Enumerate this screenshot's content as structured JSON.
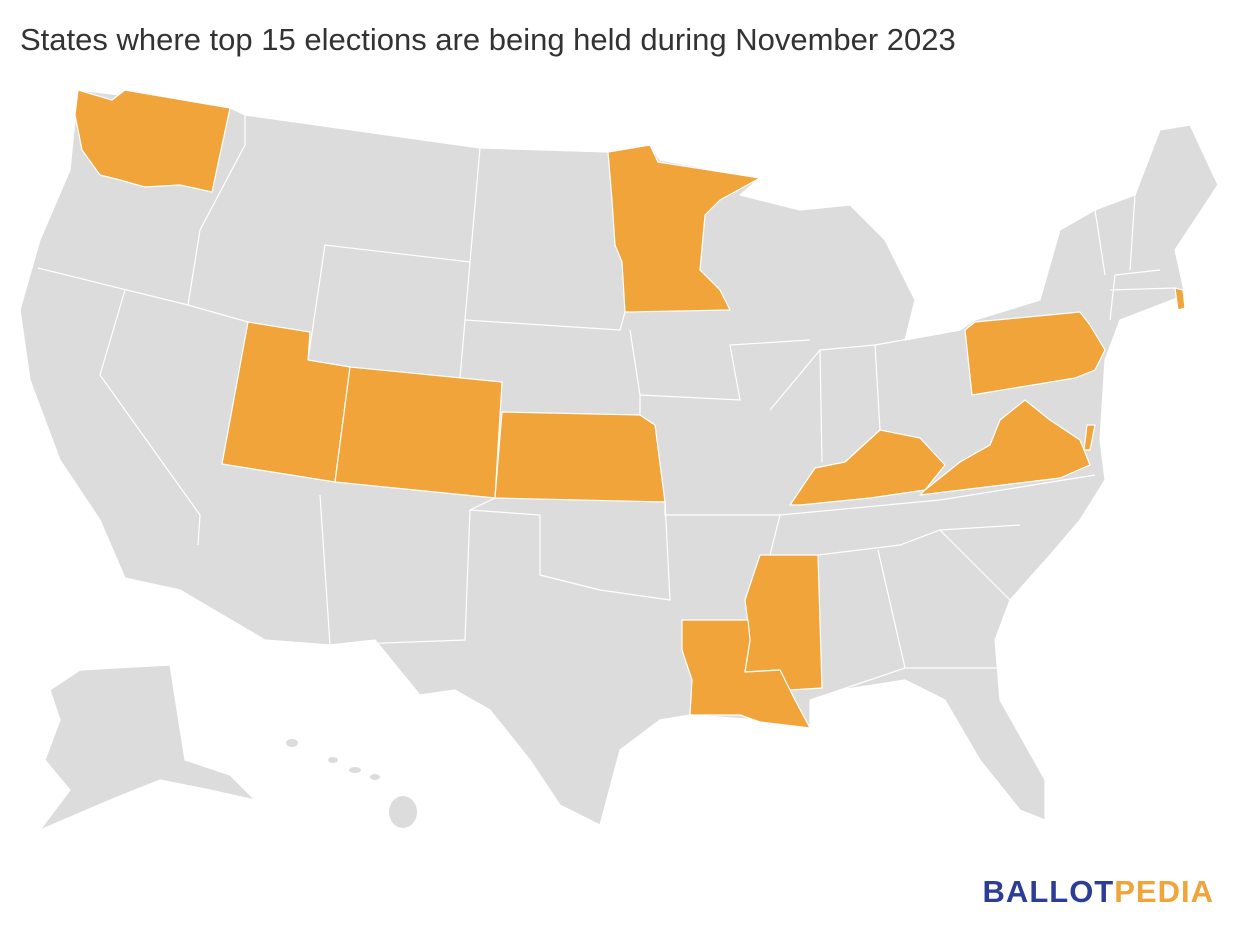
{
  "title": "States where top 15 elections are being held during November 2023",
  "logo": {
    "part1": "BALLOT",
    "part2": "PEDIA",
    "color1": "#2b3d97",
    "color2": "#f0a43a"
  },
  "map": {
    "highlight_color": "#f0a43a",
    "base_color": "#dcdcdc"
  }
}
